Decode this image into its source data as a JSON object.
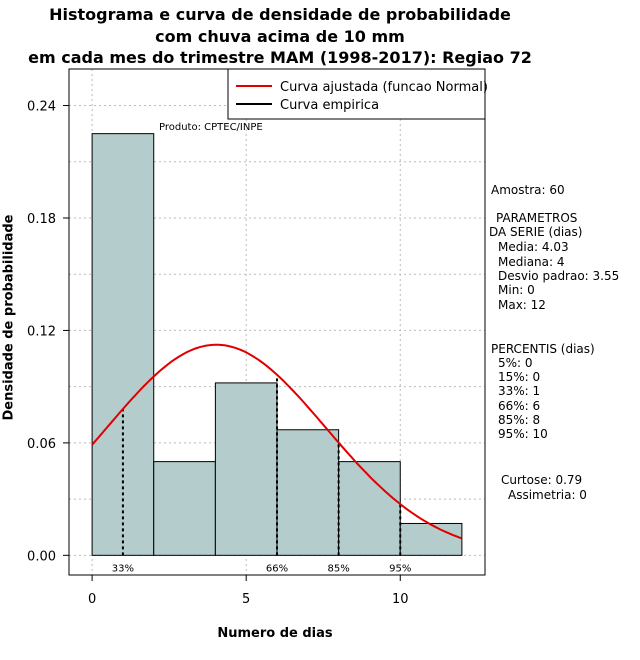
{
  "chart_data": {
    "type": "bar",
    "title": [
      "Histograma e curva de densidade de probabilidade",
      "com chuva acima de 10 mm",
      "em cada mes do trimestre MAM (1998-2017): Regiao 72"
    ],
    "xlabel": "Numero de dias",
    "ylabel": "Densidade de probabilidade",
    "xlim": [
      -0.75,
      12.75
    ],
    "ylim": [
      -0.0105,
      0.2595
    ],
    "xticks": [
      0,
      5,
      10
    ],
    "xtick_labels": [
      "0",
      "5",
      "10"
    ],
    "yticks": [
      0.0,
      0.06,
      0.12,
      0.18,
      0.24
    ],
    "ytick_labels": [
      "0.00",
      "0.06",
      "0.12",
      "0.18",
      "0.24"
    ],
    "bins": [
      {
        "from": 0,
        "to": 2,
        "density": 0.225
      },
      {
        "from": 2,
        "to": 4,
        "density": 0.05
      },
      {
        "from": 4,
        "to": 6,
        "density": 0.092
      },
      {
        "from": 6,
        "to": 8,
        "density": 0.067
      },
      {
        "from": 8,
        "to": 10,
        "density": 0.05
      },
      {
        "from": 10,
        "to": 12,
        "density": 0.017
      }
    ],
    "normal_fit": {
      "mean": 4.03,
      "sd": 3.55,
      "x_from": 0,
      "x_to": 12
    },
    "percentile_lines": [
      {
        "x": 1,
        "label": "33%"
      },
      {
        "x": 6,
        "label": "66%"
      },
      {
        "x": 8,
        "label": "85%"
      },
      {
        "x": 10,
        "label": "95%"
      }
    ],
    "legend": [
      "Curva ajustada (funcao Normal)",
      "Curva empirica"
    ],
    "legend_position": "top-right",
    "grid": true,
    "colors": {
      "bar_fill": "#b4cccb",
      "curve": "#e00000",
      "grid": "#bbbbbb"
    }
  },
  "credit": "Produto: CPTEC/INPE",
  "stats": {
    "amostra": "Amostra: 60",
    "param_head1": "PARAMETROS",
    "param_head2": "DA SERIE (dias)",
    "media": "Media: 4.03",
    "mediana": "Mediana: 4",
    "desvio": "Desvio padrao: 3.55",
    "min": "Min: 0",
    "max": "Max: 12",
    "perc_head": "PERCENTIS (dias)",
    "p5": "5%: 0",
    "p15": "15%: 0",
    "p33": "33%: 1",
    "p66": "66%: 6",
    "p85": "85%: 8",
    "p95": "95%: 10",
    "curtose": "Curtose: 0.79",
    "assimetria": "Assimetria: 0"
  }
}
